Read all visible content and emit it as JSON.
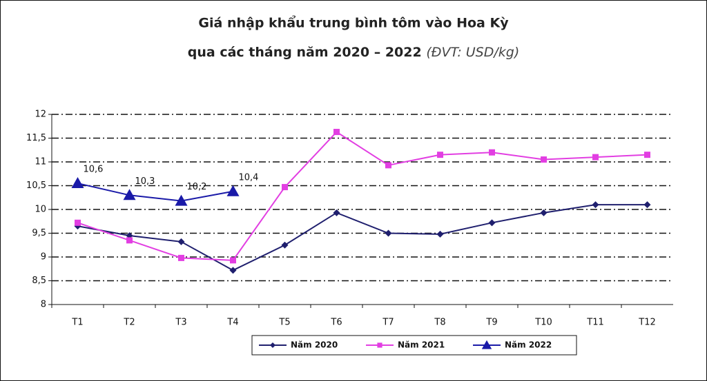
{
  "chart_data": {
    "type": "line",
    "title": "Giá nhập khẩu trung bình tôm vào Hoa Kỳ",
    "subtitle": "qua các tháng năm 2020 – 2022",
    "unit": "(ĐVT: USD/kg)",
    "categories": [
      "T1",
      "T2",
      "T3",
      "T4",
      "T5",
      "T6",
      "T7",
      "T8",
      "T9",
      "T10",
      "T11",
      "T12"
    ],
    "series": [
      {
        "name": "Năm 2020",
        "color": "#1f1f6e",
        "marker": "diamond",
        "values": [
          9.65,
          9.45,
          9.32,
          8.72,
          9.25,
          9.93,
          9.5,
          9.48,
          9.72,
          9.93,
          10.1,
          10.1
        ]
      },
      {
        "name": "Năm 2021",
        "color": "#e23ee2",
        "marker": "square",
        "values": [
          9.72,
          9.35,
          8.98,
          8.93,
          10.47,
          11.63,
          10.93,
          11.15,
          11.2,
          11.05,
          11.1,
          11.15
        ]
      },
      {
        "name": "Năm 2022",
        "color": "#1a1aa8",
        "marker": "triangle",
        "values": [
          10.55,
          10.3,
          10.18,
          10.38,
          null,
          null,
          null,
          null,
          null,
          null,
          null,
          null
        ],
        "value_labels": [
          "10,6",
          "10,3",
          "10,2",
          "10,4",
          null,
          null,
          null,
          null,
          null,
          null,
          null,
          null
        ]
      }
    ],
    "ylim": [
      8,
      12
    ],
    "yticks": [
      8,
      {
        "value": 8.5,
        "label": "8,5"
      },
      9,
      {
        "value": 9.5,
        "label": "9,5"
      },
      10,
      {
        "value": 10.5,
        "label": "10,5"
      },
      11,
      {
        "value": 11.5,
        "label": "11,5"
      },
      12
    ],
    "grid": true,
    "legend": "bottom"
  }
}
